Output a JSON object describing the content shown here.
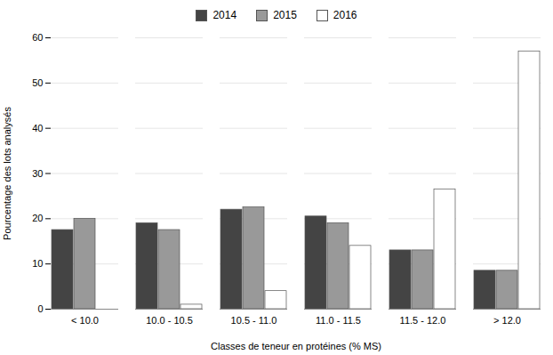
{
  "chart_data": {
    "type": "bar",
    "categories": [
      "< 10.0",
      "10.0 - 10.5",
      "10.5 - 11.0",
      "11.0 - 11.5",
      "11.5 - 12.0",
      "> 12.0"
    ],
    "series": [
      {
        "name": "2014",
        "color": "#444444",
        "values": [
          17.5,
          19.0,
          22.0,
          20.5,
          13.0,
          8.5
        ]
      },
      {
        "name": "2015",
        "color": "#999999",
        "values": [
          20.0,
          17.5,
          22.5,
          19.0,
          13.0,
          8.5
        ]
      },
      {
        "name": "2016",
        "color": "#ffffff",
        "values": [
          0.0,
          1.0,
          4.0,
          14.0,
          26.5,
          57.0
        ]
      }
    ],
    "xlabel": "Classes de teneur en protéines (% MS)",
    "ylabel": "Pourcentage des lots analysés",
    "ylim": [
      0,
      60
    ],
    "yticks": [
      0,
      10,
      20,
      30,
      40,
      50,
      60
    ],
    "grid": true,
    "legend": "top"
  }
}
